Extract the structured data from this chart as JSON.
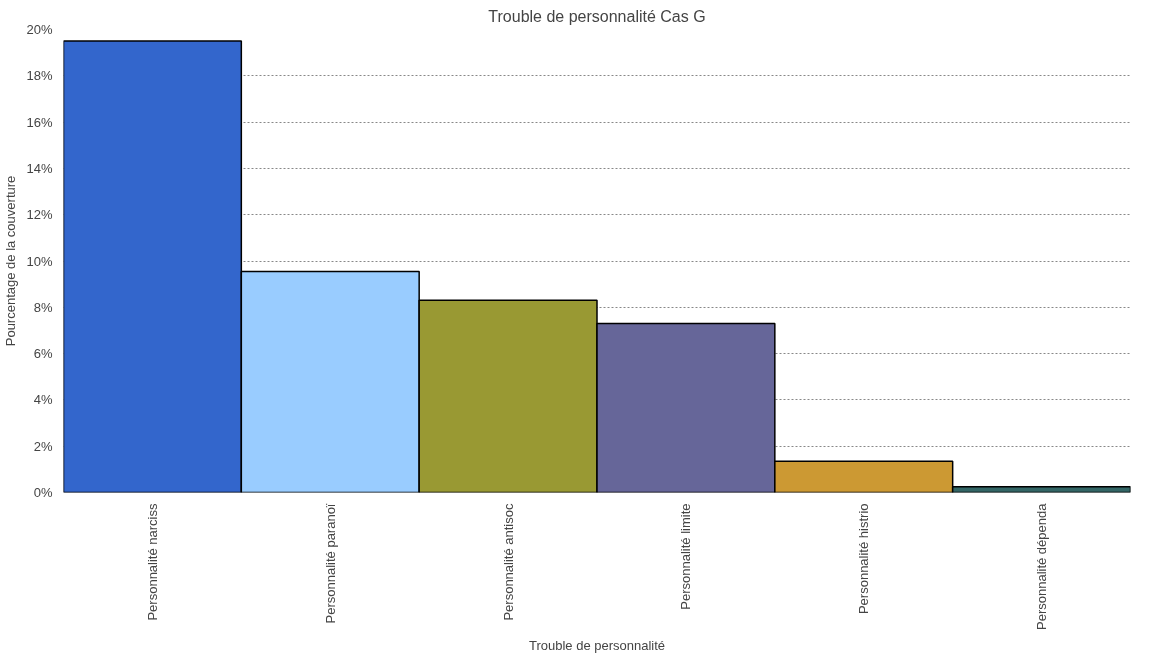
{
  "chart_data": {
    "type": "bar",
    "title": "Trouble de personnalité Cas G",
    "xlabel": "Trouble de personnalité",
    "ylabel": "Pourcentage de la couverture",
    "categories": [
      "Personnalité narciss",
      "Personnalité paranoï",
      "Personnalité antisoc",
      "Personnalité limite",
      "Personnalité histrio",
      "Personnalité dépenda"
    ],
    "values": [
      19.5,
      9.55,
      8.3,
      7.3,
      1.35,
      0.25
    ],
    "colors": [
      "#3366cc",
      "#99ccff",
      "#999933",
      "#666699",
      "#cc9933",
      "#336666"
    ],
    "ylim": [
      0,
      20
    ],
    "yticks": [
      {
        "value": 0,
        "label": "0%"
      },
      {
        "value": 2,
        "label": "2%"
      },
      {
        "value": 4,
        "label": "4%"
      },
      {
        "value": 6,
        "label": "6%"
      },
      {
        "value": 8,
        "label": "8%"
      },
      {
        "value": 10,
        "label": "10%"
      },
      {
        "value": 12,
        "label": "12%"
      },
      {
        "value": 14,
        "label": "14%"
      },
      {
        "value": 16,
        "label": "16%"
      },
      {
        "value": 18,
        "label": "18%"
      },
      {
        "value": 20,
        "label": "20%"
      }
    ],
    "grid": "y"
  }
}
